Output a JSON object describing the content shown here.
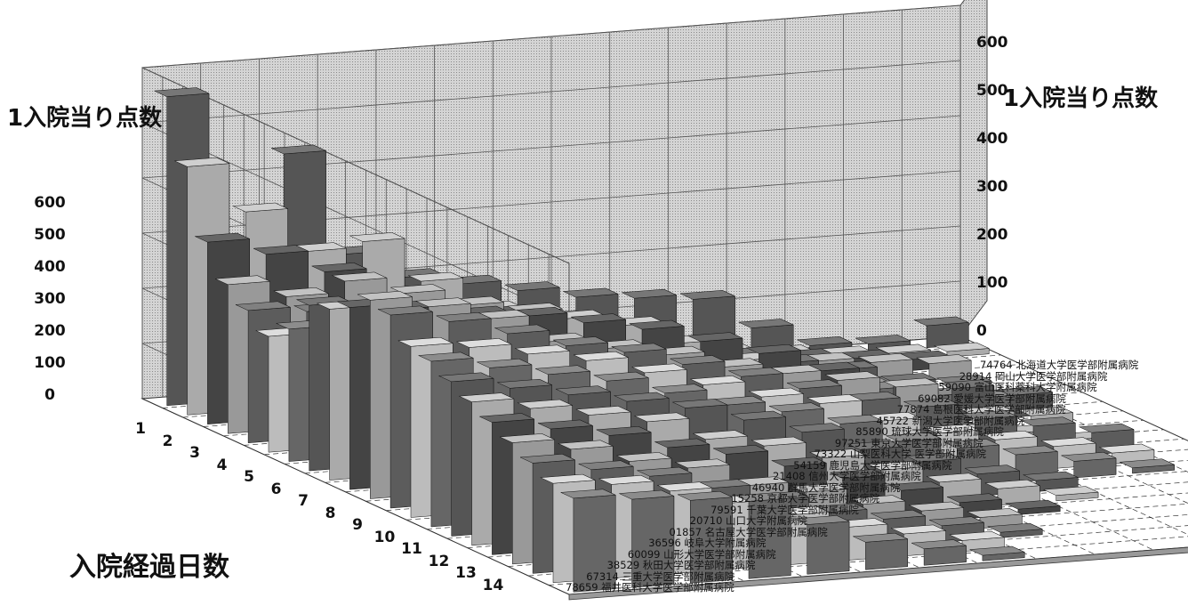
{
  "chart_data": {
    "type": "bar3d",
    "title_left": "1入院当り点数",
    "title_right": "1入院当り点数",
    "xlabel": "入院経過日数",
    "ylabel": "1入院当り点数",
    "zlim": [
      0,
      600
    ],
    "z_ticks": [
      "0",
      "100",
      "200",
      "300",
      "400",
      "500",
      "600"
    ],
    "days": [
      "1",
      "2",
      "3",
      "4",
      "5",
      "6",
      "7",
      "8",
      "9",
      "10",
      "11",
      "12",
      "13",
      "14"
    ],
    "hospitals": [
      "74764 北海道大学医学部附属病院",
      "28914 岡山大学医学部附属病院",
      "59090 富山医科薬科大学附属病院",
      "69082 愛媛大学医学部附属病院",
      "77874 島根医科大学医学部附属病院",
      "45722 新潟大学医学部附属病院",
      "85890 琉球大学医学部附属病院",
      "97251 東京大学医学部附属病院",
      "73322 山梨医科大学 医学部附属病院",
      "54159 鹿児島大学医学部附属病院",
      "21408 信州大学医学部附属病院",
      "46940 群馬大学医学部附属病院",
      "15258 京都大学医学部附属病院",
      "79591 千葉大学医学部附属病院",
      "20710 山口大学附属病院",
      "01857 名古屋大学医学部附属病院",
      "36596 岐阜大学附属病院",
      "60099 山形大学医学部附属病院",
      "38529 秋田大学医学部附属病院",
      "67314 三重大学医学部附属病院",
      "78659 福井医科大学医学部附属病院"
    ],
    "values": [
      [
        560,
        180,
        440,
        250,
        200,
        180,
        160,
        140,
        130,
        120,
        60,
        20,
        15,
        40
      ],
      [
        450,
        360,
        280,
        290,
        210,
        150,
        110,
        80,
        60,
        40,
        30,
        20,
        15,
        10
      ],
      [
        330,
        300,
        260,
        190,
        170,
        160,
        130,
        100,
        80,
        50,
        40,
        30,
        20,
        0
      ],
      [
        270,
        240,
        260,
        230,
        200,
        180,
        150,
        120,
        80,
        60,
        50,
        40,
        30,
        0
      ],
      [
        240,
        230,
        230,
        210,
        170,
        160,
        130,
        100,
        60,
        40,
        30,
        20,
        10,
        0
      ],
      [
        210,
        200,
        180,
        160,
        140,
        120,
        100,
        80,
        50,
        30,
        20,
        10,
        0,
        0
      ],
      [
        240,
        220,
        200,
        180,
        160,
        150,
        130,
        110,
        90,
        60,
        50,
        30,
        20,
        0
      ],
      [
        300,
        290,
        260,
        240,
        220,
        200,
        180,
        150,
        130,
        110,
        80,
        60,
        40,
        0
      ],
      [
        310,
        300,
        280,
        270,
        260,
        240,
        200,
        160,
        100,
        70,
        40,
        30,
        20,
        0
      ],
      [
        330,
        320,
        300,
        290,
        270,
        250,
        220,
        190,
        150,
        80,
        30,
        10,
        0,
        0
      ],
      [
        360,
        340,
        310,
        260,
        240,
        220,
        190,
        170,
        150,
        130,
        40,
        30,
        10,
        0
      ],
      [
        350,
        330,
        300,
        270,
        250,
        220,
        190,
        160,
        130,
        110,
        80,
        60,
        40,
        0
      ],
      [
        310,
        300,
        280,
        260,
        230,
        200,
        170,
        150,
        110,
        80,
        60,
        40,
        20,
        0
      ],
      [
        300,
        280,
        260,
        240,
        210,
        180,
        160,
        130,
        90,
        70,
        50,
        30,
        10,
        0
      ],
      [
        280,
        260,
        240,
        220,
        200,
        170,
        140,
        100,
        70,
        40,
        20,
        0,
        0,
        0
      ],
      [
        260,
        240,
        220,
        200,
        160,
        140,
        110,
        80,
        50,
        30,
        10,
        0,
        0,
        0
      ],
      [
        240,
        220,
        200,
        170,
        150,
        120,
        90,
        60,
        30,
        10,
        0,
        0,
        0,
        0
      ],
      [
        220,
        200,
        170,
        150,
        110,
        90,
        60,
        40,
        20,
        0,
        0,
        0,
        0,
        0
      ],
      [
        200,
        180,
        160,
        130,
        100,
        70,
        50,
        30,
        10,
        0,
        0,
        0,
        0,
        0
      ],
      [
        180,
        170,
        150,
        120,
        90,
        60,
        40,
        20,
        0,
        0,
        0,
        0,
        0,
        0
      ],
      [
        170,
        160,
        150,
        140,
        90,
        50,
        30,
        10,
        0,
        0,
        0,
        0,
        0,
        0
      ]
    ]
  }
}
